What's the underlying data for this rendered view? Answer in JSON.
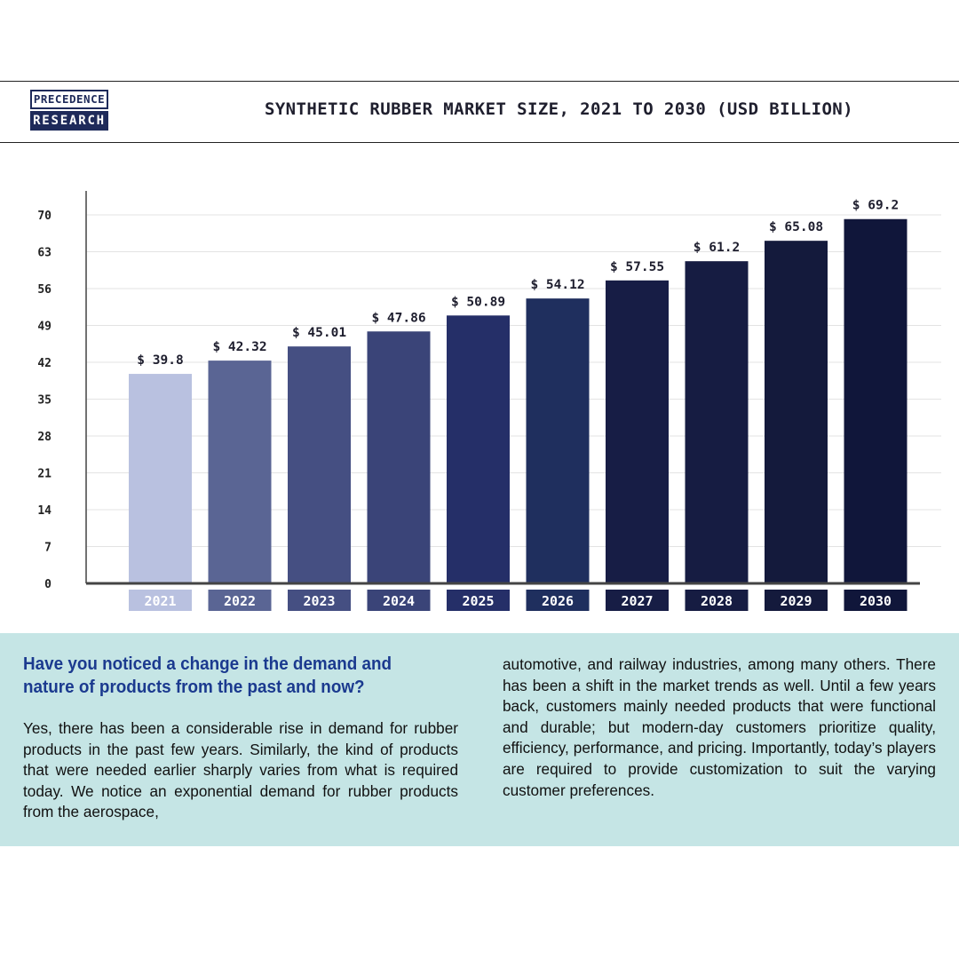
{
  "brand": {
    "logo_top": "PRECEDENCE",
    "logo_bottom": "RESEARCH"
  },
  "header": {
    "title": "SYNTHETIC RUBBER MARKET SIZE, 2021 TO 2030 (USD BILLION)"
  },
  "chart_data": {
    "type": "bar",
    "title": "SYNTHETIC RUBBER MARKET SIZE, 2021 TO 2030 (USD BILLION)",
    "categories": [
      "2021",
      "2022",
      "2023",
      "2024",
      "2025",
      "2026",
      "2027",
      "2028",
      "2029",
      "2030"
    ],
    "values": [
      39.8,
      42.32,
      45.01,
      47.86,
      50.89,
      54.12,
      57.55,
      61.2,
      65.08,
      69.2
    ],
    "value_labels": [
      "$ 39.8",
      "$ 42.32",
      "$ 45.01",
      "$ 47.86",
      "$ 50.89",
      "$ 54.12",
      "$ 57.55",
      "$ 61.2",
      "$ 65.08",
      "$ 69.2"
    ],
    "y_ticks": [
      0,
      7,
      14,
      21,
      28,
      35,
      42,
      49,
      56,
      63,
      70
    ],
    "ylim": [
      0,
      70
    ],
    "grid": true,
    "bar_colors": [
      "#b9c1e0",
      "#5a6594",
      "#454f82",
      "#3a4478",
      "#252f68",
      "#1f2f5e",
      "#171d45",
      "#161c42",
      "#141a3c",
      "#10163a"
    ],
    "xlabel": "",
    "ylabel": ""
  },
  "article": {
    "question": "Have you noticed a change in the demand and nature of products from the past and now?",
    "paragraph_left": "Yes, there has been a considerable rise in demand for rubber products in the past few years. Similarly, the kind of products that were needed earlier sharply varies from what is required today. We notice an exponential demand for rubber products from the aerospace,",
    "paragraph_right": "automotive, and railway industries, among many others. There has been a shift in the market trends as well. Until a few years back, customers mainly needed products that were functional and durable; but modern-day customers prioritize quality, efficiency, performance, and pricing. Importantly, today’s players are required to provide customization to suit the varying customer preferences."
  }
}
